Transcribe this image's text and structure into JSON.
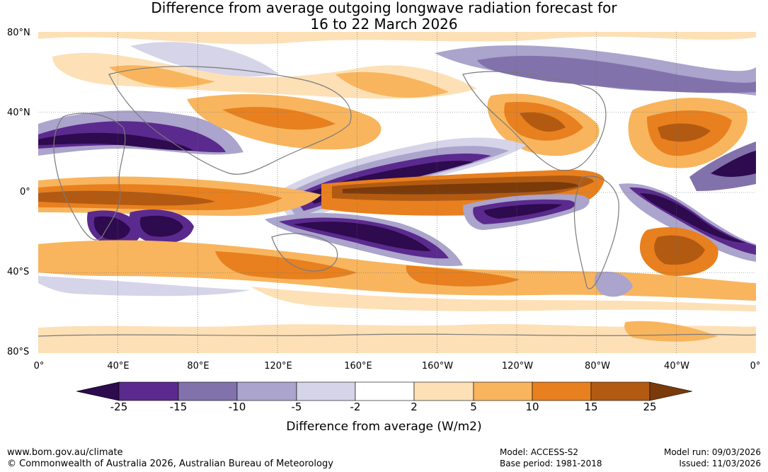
{
  "title": {
    "line1": "Difference from average outgoing longwave radiation forecast for",
    "line2": "16 to 22 March 2026"
  },
  "map": {
    "lat_labels": [
      "80°N",
      "40°N",
      "0°",
      "40°S",
      "80°S"
    ],
    "lon_labels": [
      "0°",
      "40°E",
      "80°E",
      "120°E",
      "160°E",
      "160°W",
      "120°W",
      "80°W",
      "40°W",
      "0°"
    ],
    "lat_range": [
      -80,
      80
    ],
    "lon_range": [
      0,
      360
    ],
    "gridlines": true
  },
  "colorbar": {
    "ticks": [
      "-25",
      "-15",
      "-10",
      "-5",
      "-2",
      "2",
      "5",
      "10",
      "15",
      "25"
    ],
    "colors": [
      "#2e0a4e",
      "#5b2a8e",
      "#8272ac",
      "#aba4cc",
      "#d6d4e8",
      "#ffffff",
      "#fde0b6",
      "#f8b55e",
      "#e8801f",
      "#b35a12",
      "#7a3a0a"
    ],
    "label": "Difference from average (W/m2)"
  },
  "footer": {
    "website": "www.bom.gov.au/climate",
    "copyright": "© Commonwealth of Australia 2026, Australian Bureau of Meteorology",
    "model": "Model: ACCESS-S2",
    "base_period": "Base period: 1981-2018",
    "model_run": "Model run: 09/03/2026",
    "issued": "Issued: 11/03/2026"
  }
}
